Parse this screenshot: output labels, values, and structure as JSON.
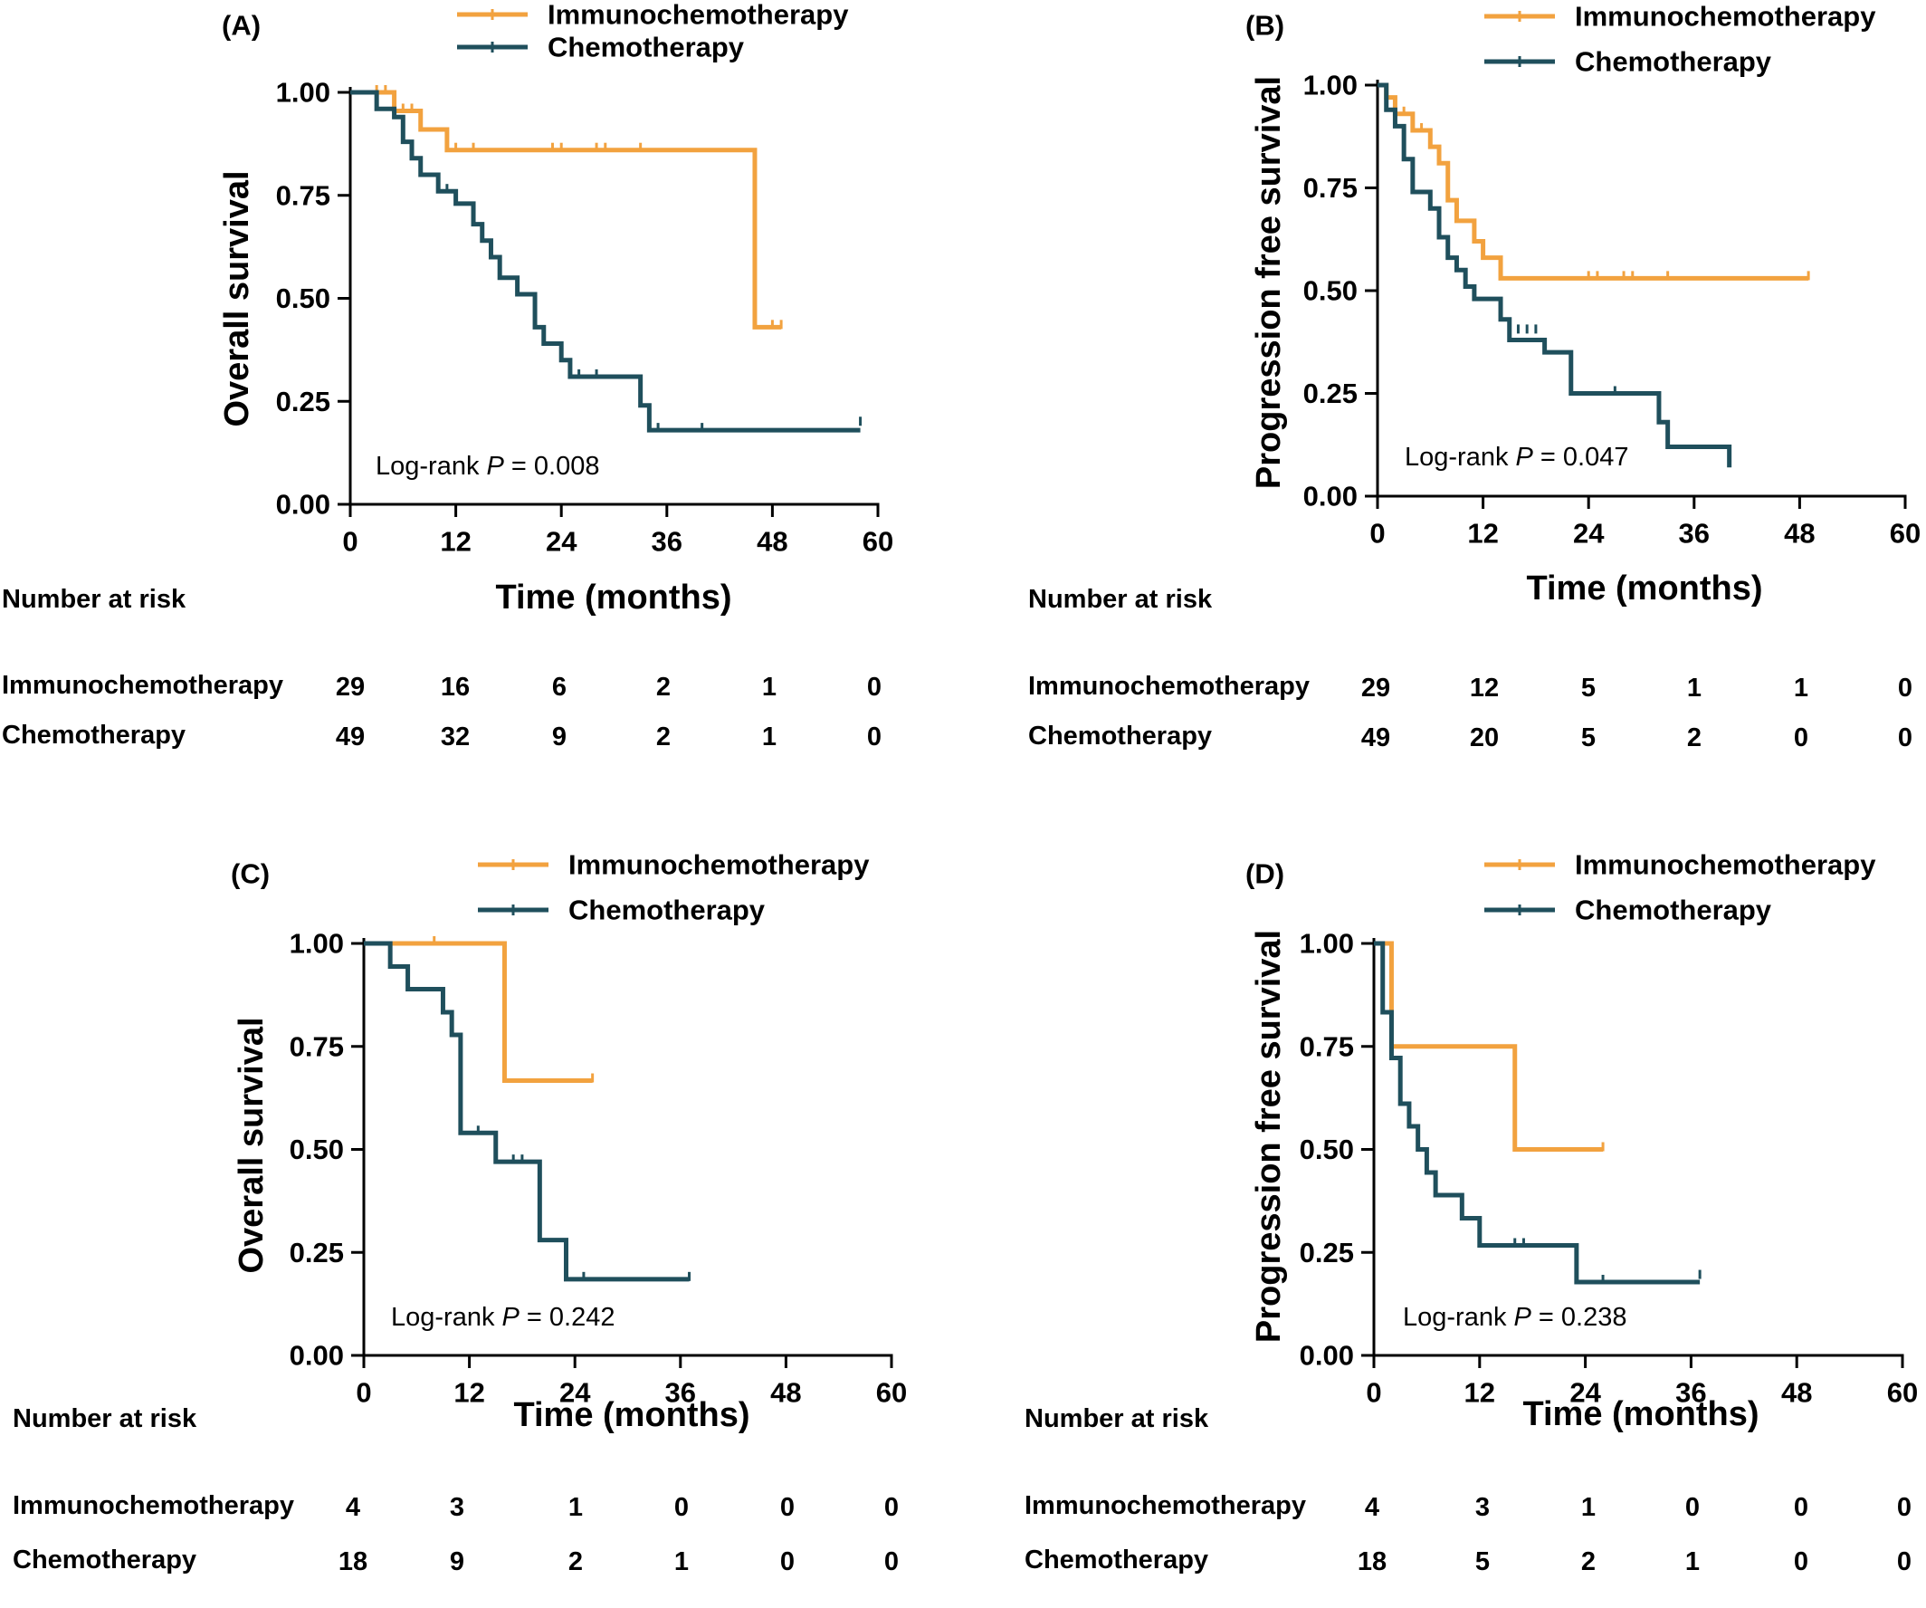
{
  "colors": {
    "immuno": "#F2A23F",
    "chemo": "#1F4F5C",
    "axis": "#000000"
  },
  "chart_data": [
    {
      "type": "line",
      "panel": "(A)",
      "ylabel": "Overall survival",
      "xlabel": "Time (months)",
      "xlim": [
        0,
        60
      ],
      "ylim": [
        0,
        1
      ],
      "xticks": [
        "0",
        "12",
        "24",
        "36",
        "48",
        "60"
      ],
      "yticks": [
        "0.00",
        "0.25",
        "0.50",
        "0.75",
        "1.00"
      ],
      "pvalue": {
        "prefix": "Log-rank ",
        "p": "P",
        "value": " = 0.008"
      },
      "risk_title": "Number at risk",
      "series": [
        {
          "name": "Immunochemotherapy",
          "color_key": "immuno",
          "steps": [
            [
              0,
              1.0
            ],
            [
              5,
              0.955
            ],
            [
              8,
              0.91
            ],
            [
              11,
              0.86
            ],
            [
              46,
              0.43
            ],
            [
              49,
              0.43
            ]
          ],
          "censors": [
            [
              3,
              1.0
            ],
            [
              4,
              1.0
            ],
            [
              6,
              0.955
            ],
            [
              7,
              0.955
            ],
            [
              12,
              0.86
            ],
            [
              14,
              0.86
            ],
            [
              23,
              0.86
            ],
            [
              24,
              0.86
            ],
            [
              28,
              0.86
            ],
            [
              29,
              0.86
            ],
            [
              33,
              0.86
            ],
            [
              48,
              0.43
            ],
            [
              49,
              0.43
            ]
          ],
          "risk": [
            "29",
            "16",
            "6",
            "2",
            "1",
            "0"
          ]
        },
        {
          "name": "Chemotherapy",
          "color_key": "chemo",
          "steps": [
            [
              0,
              1.0
            ],
            [
              3,
              0.96
            ],
            [
              5,
              0.94
            ],
            [
              6,
              0.88
            ],
            [
              7,
              0.84
            ],
            [
              8,
              0.8
            ],
            [
              10,
              0.76
            ],
            [
              12,
              0.73
            ],
            [
              14,
              0.68
            ],
            [
              15,
              0.64
            ],
            [
              16,
              0.6
            ],
            [
              17,
              0.55
            ],
            [
              19,
              0.51
            ],
            [
              21,
              0.43
            ],
            [
              22,
              0.39
            ],
            [
              24,
              0.35
            ],
            [
              25,
              0.31
            ],
            [
              33,
              0.24
            ],
            [
              34,
              0.18
            ],
            [
              58,
              0.18
            ]
          ],
          "censors": [
            [
              11,
              0.76
            ],
            [
              26,
              0.31
            ],
            [
              28,
              0.31
            ],
            [
              35,
              0.18
            ],
            [
              40,
              0.18
            ],
            [
              58,
              0.195
            ]
          ],
          "risk": [
            "49",
            "32",
            "9",
            "2",
            "1",
            "0"
          ]
        }
      ]
    },
    {
      "type": "line",
      "panel": "(B)",
      "ylabel": "Progression free survival",
      "xlabel": "Time (months)",
      "xlim": [
        0,
        60
      ],
      "ylim": [
        0,
        1
      ],
      "xticks": [
        "0",
        "12",
        "24",
        "36",
        "48",
        "60"
      ],
      "yticks": [
        "0.00",
        "0.25",
        "0.50",
        "0.75",
        "1.00"
      ],
      "pvalue": {
        "prefix": "Log-rank ",
        "p": "P",
        "value": " = 0.047"
      },
      "risk_title": "Number at risk",
      "series": [
        {
          "name": "Immunochemotherapy",
          "color_key": "immuno",
          "steps": [
            [
              0,
              1.0
            ],
            [
              1,
              0.97
            ],
            [
              2,
              0.93
            ],
            [
              4,
              0.89
            ],
            [
              6,
              0.85
            ],
            [
              7,
              0.81
            ],
            [
              8,
              0.72
            ],
            [
              9,
              0.67
            ],
            [
              11,
              0.62
            ],
            [
              12,
              0.58
            ],
            [
              14,
              0.53
            ],
            [
              49,
              0.53
            ]
          ],
          "censors": [
            [
              1,
              0.97
            ],
            [
              3,
              0.93
            ],
            [
              5,
              0.89
            ],
            [
              24,
              0.53
            ],
            [
              25,
              0.53
            ],
            [
              28,
              0.53
            ],
            [
              29,
              0.53
            ],
            [
              33,
              0.53
            ],
            [
              49,
              0.53
            ]
          ],
          "risk": [
            "29",
            "12",
            "5",
            "1",
            "1",
            "0"
          ]
        },
        {
          "name": "Chemotherapy",
          "color_key": "chemo",
          "steps": [
            [
              0,
              1.0
            ],
            [
              1,
              0.94
            ],
            [
              2,
              0.9
            ],
            [
              3,
              0.82
            ],
            [
              4,
              0.74
            ],
            [
              6,
              0.7
            ],
            [
              7,
              0.63
            ],
            [
              8,
              0.58
            ],
            [
              9,
              0.55
            ],
            [
              10,
              0.51
            ],
            [
              11,
              0.48
            ],
            [
              14,
              0.43
            ],
            [
              15,
              0.38
            ],
            [
              19,
              0.35
            ],
            [
              22,
              0.25
            ],
            [
              32,
              0.18
            ],
            [
              33,
              0.12
            ],
            [
              40,
              0.07
            ]
          ],
          "censors": [
            [
              9,
              0.55
            ],
            [
              16,
              0.4
            ],
            [
              17,
              0.4
            ],
            [
              18,
              0.4
            ],
            [
              27,
              0.25
            ]
          ],
          "risk": [
            "49",
            "20",
            "5",
            "2",
            "0",
            "0"
          ]
        }
      ]
    },
    {
      "type": "line",
      "panel": "(C)",
      "ylabel": "Overall survival",
      "xlabel": "Time (months)",
      "xlim": [
        0,
        60
      ],
      "ylim": [
        0,
        1
      ],
      "xticks": [
        "0",
        "12",
        "24",
        "36",
        "48",
        "60"
      ],
      "yticks": [
        "0.00",
        "0.25",
        "0.50",
        "0.75",
        "1.00"
      ],
      "pvalue": {
        "prefix": "Log-rank ",
        "p": "P",
        "value": " = 0.242"
      },
      "risk_title": "Number at risk",
      "series": [
        {
          "name": "Immunochemotherapy",
          "color_key": "immuno",
          "steps": [
            [
              0,
              1.0
            ],
            [
              16,
              0.667
            ],
            [
              26,
              0.667
            ]
          ],
          "censors": [
            [
              8,
              1.0
            ],
            [
              26,
              0.667
            ]
          ],
          "risk": [
            "4",
            "3",
            "1",
            "0",
            "0",
            "0"
          ]
        },
        {
          "name": "Chemotherapy",
          "color_key": "chemo",
          "steps": [
            [
              0,
              1.0
            ],
            [
              3,
              0.944
            ],
            [
              5,
              0.889
            ],
            [
              9,
              0.833
            ],
            [
              10,
              0.778
            ],
            [
              11,
              0.54
            ],
            [
              15,
              0.47
            ],
            [
              20,
              0.28
            ],
            [
              23,
              0.185
            ],
            [
              37,
              0.185
            ]
          ],
          "censors": [
            [
              13,
              0.54
            ],
            [
              17,
              0.47
            ],
            [
              18,
              0.47
            ],
            [
              25,
              0.185
            ],
            [
              37,
              0.185
            ]
          ],
          "risk": [
            "18",
            "9",
            "2",
            "1",
            "0",
            "0"
          ]
        }
      ]
    },
    {
      "type": "line",
      "panel": "(D)",
      "ylabel": "Progression free survival",
      "xlabel": "Time (months)",
      "xlim": [
        0,
        60
      ],
      "ylim": [
        0,
        1
      ],
      "xticks": [
        "0",
        "12",
        "24",
        "36",
        "48",
        "60"
      ],
      "yticks": [
        "0.00",
        "0.25",
        "0.50",
        "0.75",
        "1.00"
      ],
      "pvalue": {
        "prefix": "Log-rank ",
        "p": "P",
        "value": " = 0.238"
      },
      "risk_title": "Number at risk",
      "series": [
        {
          "name": "Immunochemotherapy",
          "color_key": "immuno",
          "steps": [
            [
              0,
              1.0
            ],
            [
              2,
              0.75
            ],
            [
              16,
              0.5
            ],
            [
              26,
              0.5
            ]
          ],
          "censors": [
            [
              26,
              0.5
            ]
          ],
          "risk": [
            "4",
            "3",
            "1",
            "0",
            "0",
            "0"
          ]
        },
        {
          "name": "Chemotherapy",
          "color_key": "chemo",
          "steps": [
            [
              0,
              1.0
            ],
            [
              1,
              0.833
            ],
            [
              2,
              0.722
            ],
            [
              3,
              0.611
            ],
            [
              4,
              0.556
            ],
            [
              5,
              0.5
            ],
            [
              6,
              0.444
            ],
            [
              7,
              0.389
            ],
            [
              10,
              0.333
            ],
            [
              12,
              0.267
            ],
            [
              23,
              0.178
            ],
            [
              37,
              0.178
            ]
          ],
          "censors": [
            [
              16,
              0.267
            ],
            [
              17,
              0.267
            ],
            [
              26,
              0.178
            ],
            [
              37,
              0.19
            ]
          ],
          "risk": [
            "18",
            "5",
            "2",
            "1",
            "0",
            "0"
          ]
        }
      ]
    }
  ]
}
